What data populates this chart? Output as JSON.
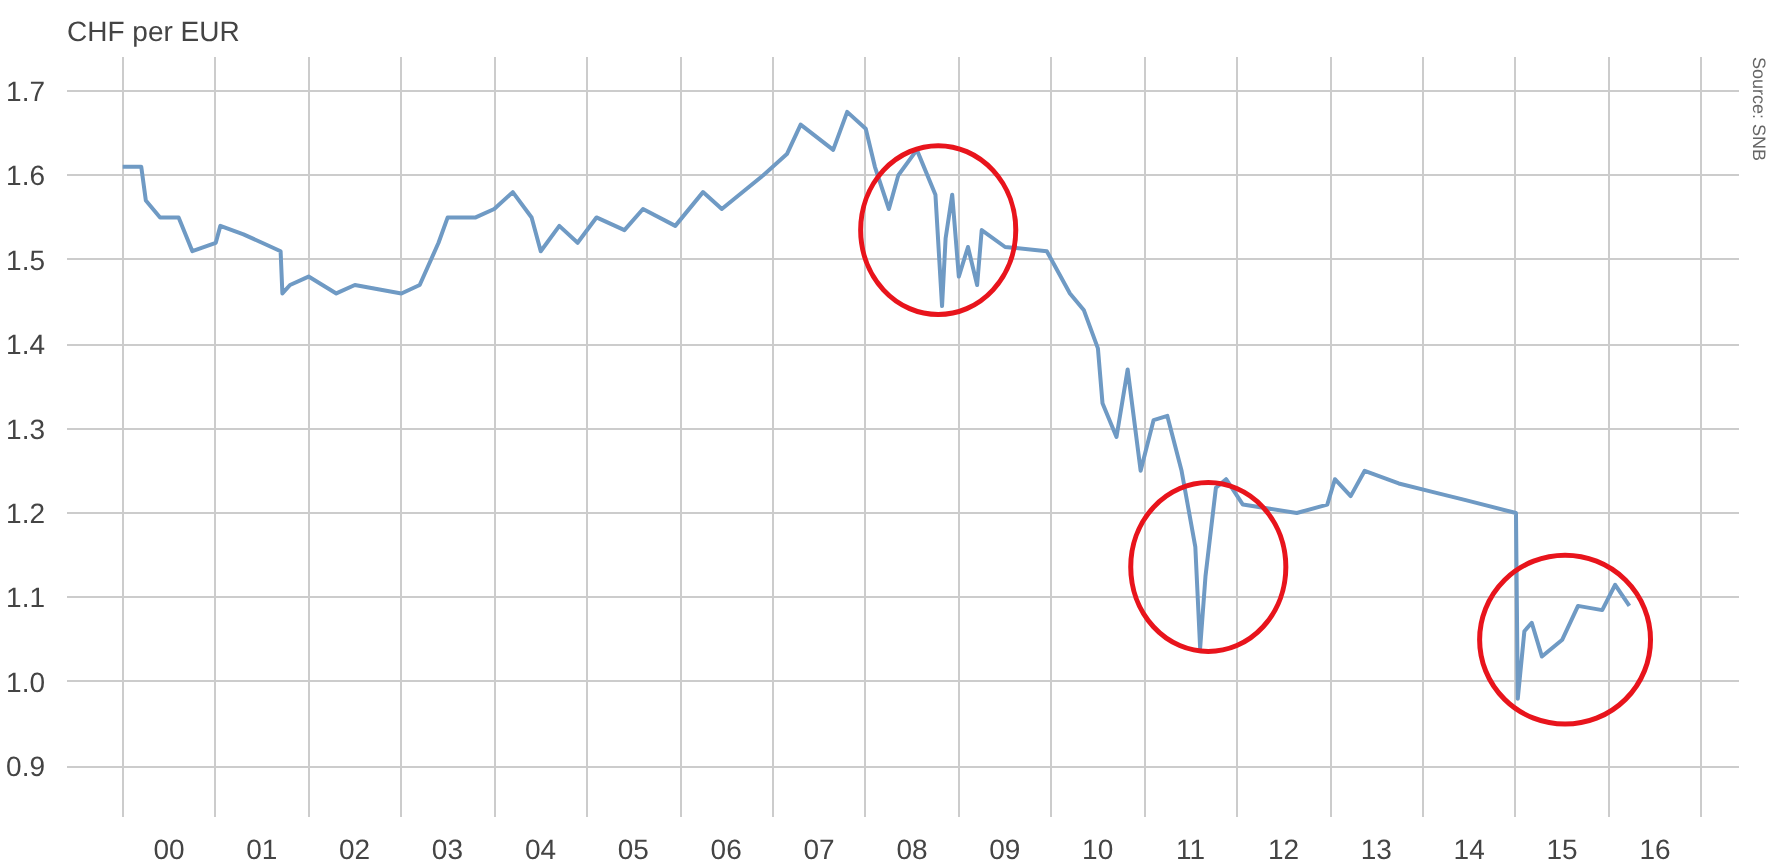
{
  "chart_data": {
    "type": "line",
    "ylabel": "CHF per EUR",
    "annotations": [
      "Source: SNB"
    ],
    "grid": true,
    "xlim": [
      "1999-05-27",
      "2017-05-27"
    ],
    "ylim": [
      0.84,
      1.74
    ],
    "yticks": [
      0.9,
      {
        "value": 1.0,
        "label": "1.0"
      },
      1.1,
      1.2,
      1.3,
      1.4,
      1.5,
      1.6,
      1.7
    ],
    "xticks": [
      {
        "value": "2000-01-01",
        "label": null
      },
      {
        "value": "2001-01-01",
        "label": null
      },
      {
        "value": "2002-01-01",
        "label": null
      },
      {
        "value": "2003-01-01",
        "label": null
      },
      {
        "value": "2004-01-01",
        "label": null
      },
      {
        "value": "2005-01-01",
        "label": null
      },
      {
        "value": "2006-01-01",
        "label": null
      },
      {
        "value": "2007-01-01",
        "label": null
      },
      {
        "value": "2008-01-01",
        "label": null
      },
      {
        "value": "2009-01-01",
        "label": null
      },
      {
        "value": "2010-01-01",
        "label": null
      },
      {
        "value": "2011-01-01",
        "label": null
      },
      {
        "value": "2012-01-01",
        "label": null
      },
      {
        "value": "2013-01-01",
        "label": null
      },
      {
        "value": "2014-01-01",
        "label": null
      },
      {
        "value": "2015-01-01",
        "label": null
      },
      {
        "value": "2016-01-01",
        "label": null
      },
      {
        "value": "2017-01-01",
        "label": null
      },
      {
        "value": "2000-07-01",
        "label": "00"
      },
      {
        "value": "2001-07-01",
        "label": "01"
      },
      {
        "value": "2002-07-01",
        "label": "02"
      },
      {
        "value": "2003-07-01",
        "label": "03"
      },
      {
        "value": "2004-07-01",
        "label": "04"
      },
      {
        "value": "2005-07-01",
        "label": "05"
      },
      {
        "value": "2006-07-01",
        "label": "06"
      },
      {
        "value": "2007-07-01",
        "label": "07"
      },
      {
        "value": "2008-07-01",
        "label": "08"
      },
      {
        "value": "2009-07-01",
        "label": "09"
      },
      {
        "value": "2010-07-01",
        "label": "10"
      },
      {
        "value": "2011-07-01",
        "label": "11"
      },
      {
        "value": "2012-07-01",
        "label": "12"
      },
      {
        "value": "2013-07-01",
        "label": "13"
      },
      {
        "value": "2014-07-01",
        "label": "14"
      },
      {
        "value": "2015-07-01",
        "label": "15"
      },
      {
        "value": "2016-07-01",
        "label": "16"
      }
    ],
    "x": [
      "2000-01-01",
      "2000-03-14",
      "2000-04-01",
      "2000-05-27",
      "2000-08-08",
      "2000-10-01",
      "2001-01-01",
      "2001-01-19",
      "2001-04-20",
      "2001-07-02",
      "2001-09-13",
      "2001-09-20",
      "2001-10-20",
      "2002-01-01",
      "2002-04-20",
      "2002-07-02",
      "2003-01-01",
      "2003-03-14",
      "2003-05-27",
      "2003-07-02",
      "2003-10-20",
      "2004-01-01",
      "2004-03-14",
      "2004-05-27",
      "2004-07-02",
      "2004-09-13",
      "2004-11-24",
      "2005-02-06",
      "2005-05-27",
      "2005-08-08",
      "2005-12-13",
      "2006-04-01",
      "2006-06-14",
      "2006-11-24",
      "2007-02-25",
      "2007-04-20",
      "2007-08-26",
      "2007-10-20",
      "2008-01-01",
      "2008-02-06",
      "2008-04-01",
      "2008-05-08",
      "2008-07-20",
      "2008-10-01",
      "2008-10-27",
      "2008-11-10",
      "2008-12-06",
      "2009-01-01",
      "2009-02-06",
      "2009-03-14",
      "2009-04-01",
      "2009-07-02",
      "2009-12-13",
      "2010-03-14",
      "2010-05-08",
      "2010-07-02",
      "2010-07-20",
      "2010-09-13",
      "2010-10-27",
      "2010-12-17",
      "2011-02-06",
      "2011-04-01",
      "2011-05-27",
      "2011-07-20",
      "2011-08-08",
      "2011-08-29",
      "2011-10-09",
      "2011-11-18",
      "2012-01-23",
      "2012-08-22",
      "2012-12-20",
      "2013-01-19",
      "2013-03-22",
      "2013-05-16",
      "2013-09-27",
      "2014-02-06",
      "2014-06-21",
      "2015-01-01",
      "2015-01-08",
      "2015-02-03",
      "2015-03-04",
      "2015-04-13",
      "2015-07-02",
      "2015-09-02",
      "2015-12-06",
      "2016-01-26",
      "2016-03-22"
    ],
    "series": [
      {
        "color": "#6f9ac4",
        "values": [
          1.61,
          1.61,
          1.57,
          1.55,
          1.55,
          1.51,
          1.52,
          1.54,
          1.53,
          1.52,
          1.51,
          1.46,
          1.47,
          1.48,
          1.46,
          1.47,
          1.46,
          1.47,
          1.52,
          1.55,
          1.55,
          1.56,
          1.58,
          1.55,
          1.51,
          1.54,
          1.52,
          1.55,
          1.535,
          1.56,
          1.54,
          1.58,
          1.56,
          1.6,
          1.625,
          1.66,
          1.63,
          1.675,
          1.655,
          1.61,
          1.56,
          1.6,
          1.63,
          1.577,
          1.445,
          1.525,
          1.577,
          1.48,
          1.515,
          1.47,
          1.535,
          1.515,
          1.51,
          1.46,
          1.44,
          1.395,
          1.33,
          1.29,
          1.37,
          1.25,
          1.31,
          1.315,
          1.25,
          1.16,
          1.04,
          1.125,
          1.23,
          1.24,
          1.21,
          1.2,
          1.21,
          1.24,
          1.22,
          1.25,
          1.235,
          1.225,
          1.215,
          1.2,
          0.98,
          1.06,
          1.07,
          1.03,
          1.05,
          1.09,
          1.085,
          1.115,
          1.09
        ]
      }
    ]
  }
}
